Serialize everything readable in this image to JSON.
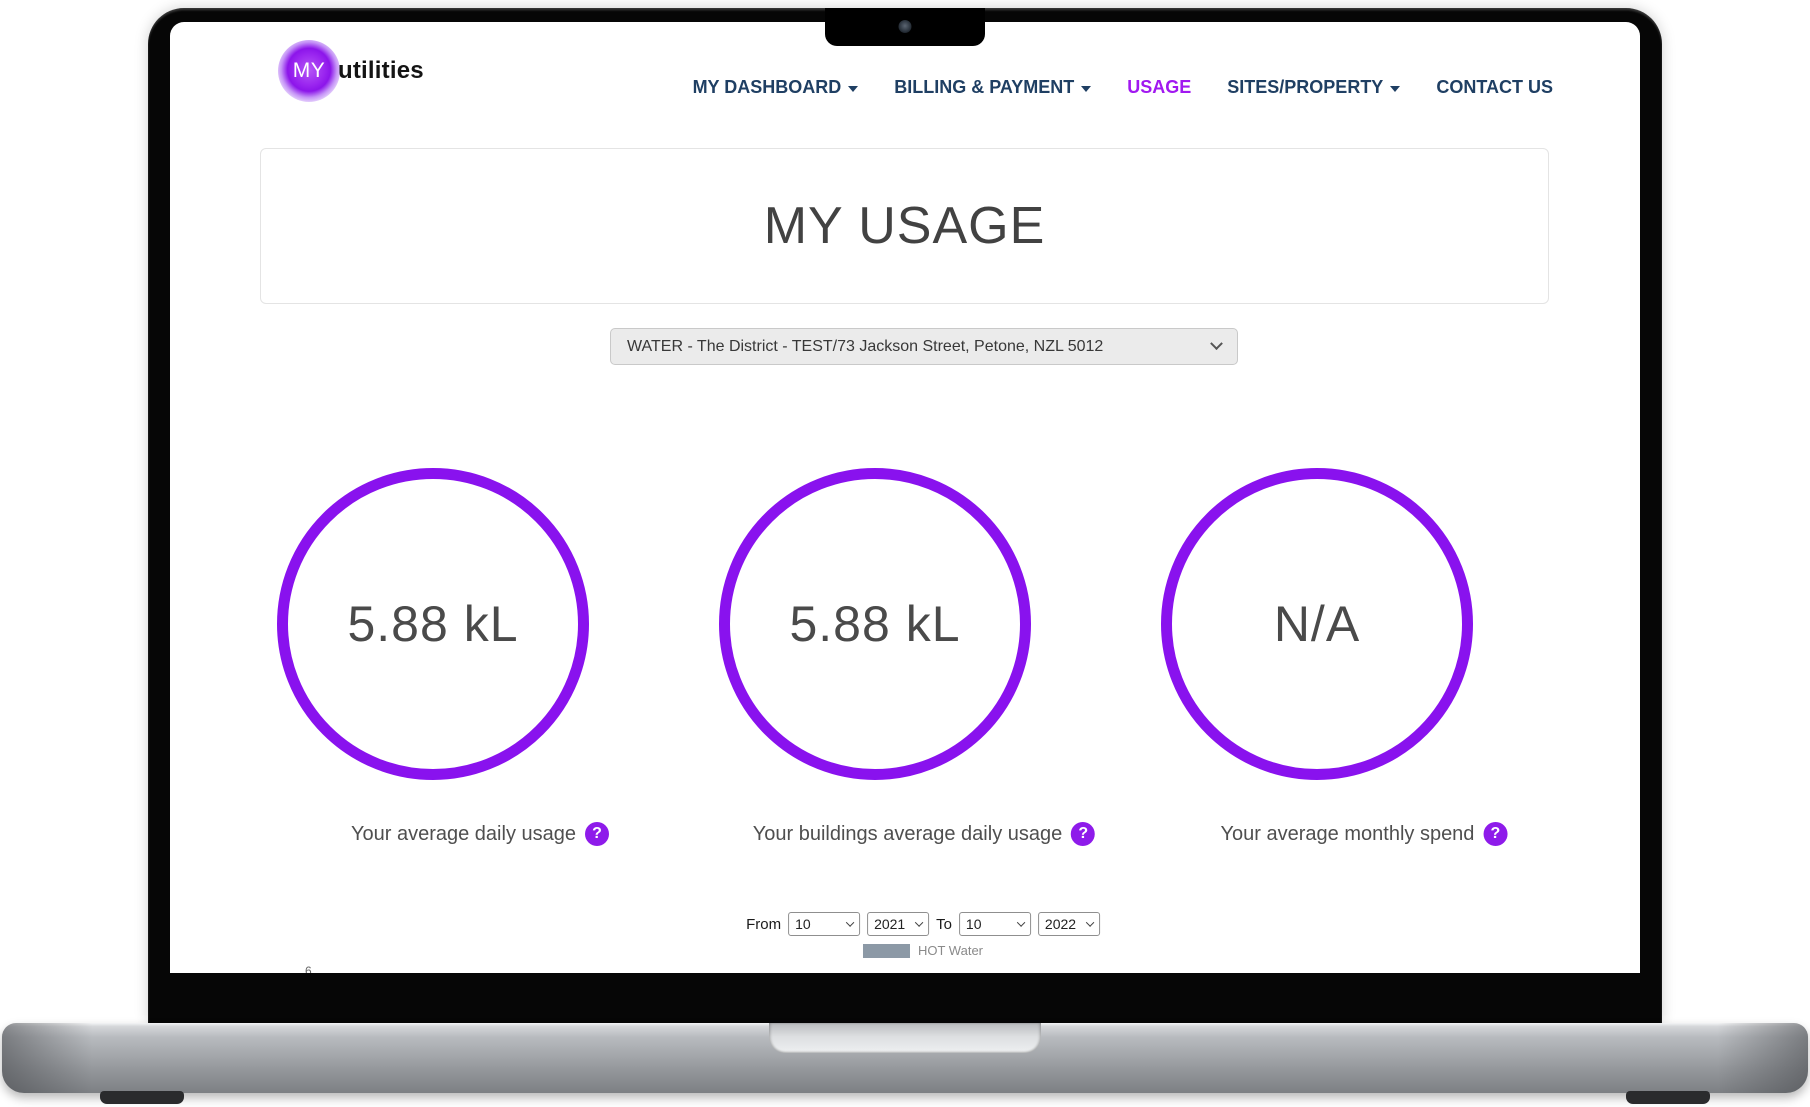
{
  "brand": {
    "logo_circle_text": "MY",
    "logo_wordmark": "utilities"
  },
  "nav": {
    "items": [
      {
        "label": "MY DASHBOARD",
        "has_dropdown": true,
        "active": false
      },
      {
        "label": "BILLING & PAYMENT",
        "has_dropdown": true,
        "active": false
      },
      {
        "label": "USAGE",
        "has_dropdown": false,
        "active": true
      },
      {
        "label": "SITES/PROPERTY",
        "has_dropdown": true,
        "active": false
      },
      {
        "label": "CONTACT US",
        "has_dropdown": false,
        "active": false
      }
    ]
  },
  "page": {
    "title": "MY USAGE"
  },
  "site_selector": {
    "value": "WATER - The District - TEST/73 Jackson Street, Petone, NZL 5012"
  },
  "metrics": [
    {
      "value": "5.88 kL",
      "label": "Your average daily usage"
    },
    {
      "value": "5.88 kL",
      "label": "Your buildings average daily usage"
    },
    {
      "value": "N/A",
      "label": "Your average monthly spend"
    }
  ],
  "help_icon_glyph": "?",
  "date_range": {
    "from_label": "From",
    "to_label": "To",
    "from_month": "10",
    "from_year": "2021",
    "to_month": "10",
    "to_year": "2022"
  },
  "legend": {
    "label": "HOT Water",
    "swatch_color": "#8c99a6"
  },
  "chart_axis_fragment": "6",
  "colors": {
    "nav_navy": "#1f3f63",
    "active_link_purple": "#a118f0",
    "circle_stroke_purple": "#8912ee",
    "help_badge_purple": "#8e1bea",
    "value_gray": "#4a4a4a",
    "dropdown_bg": "#ebebeb"
  }
}
